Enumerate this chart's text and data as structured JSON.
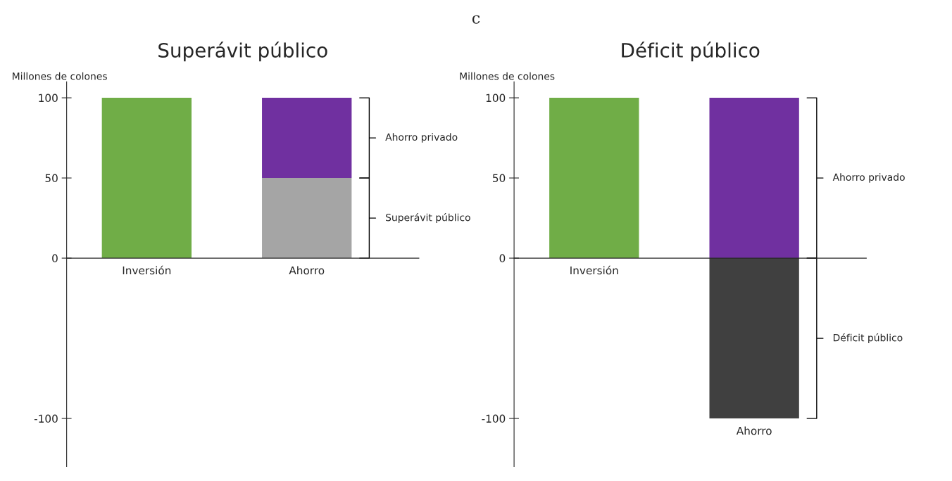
{
  "chart_data": [
    {
      "type": "bar",
      "title": "Superávit público",
      "ylabel": "Millones de colones",
      "annotations": [
        "c"
      ],
      "stacked": true,
      "categories": [
        "Inversión",
        "Ahorro"
      ],
      "ylim": [
        -130,
        110
      ],
      "yticks": [
        -100,
        0,
        50,
        100
      ],
      "series": [
        {
          "color": "#70ad47",
          "values": [
            100,
            null
          ]
        },
        {
          "name": "Superávit público",
          "color": "#a5a5a5",
          "values": [
            null,
            50
          ]
        },
        {
          "name": "Ahorro privado",
          "color": "#7030a0",
          "values": [
            null,
            50
          ]
        }
      ]
    },
    {
      "type": "bar",
      "title": "Déficit público",
      "ylabel": "Millones de colones",
      "stacked": true,
      "categories": [
        "Inversión",
        "Ahorro"
      ],
      "ylim": [
        -130,
        110
      ],
      "yticks": [
        -100,
        0,
        50,
        100
      ],
      "series": [
        {
          "color": "#70ad47",
          "values": [
            100,
            null
          ]
        },
        {
          "name": "Ahorro privado",
          "color": "#7030a0",
          "values": [
            null,
            100
          ]
        },
        {
          "name": "Déficit público",
          "color": "#404040",
          "values": [
            null,
            -100
          ]
        }
      ]
    }
  ]
}
